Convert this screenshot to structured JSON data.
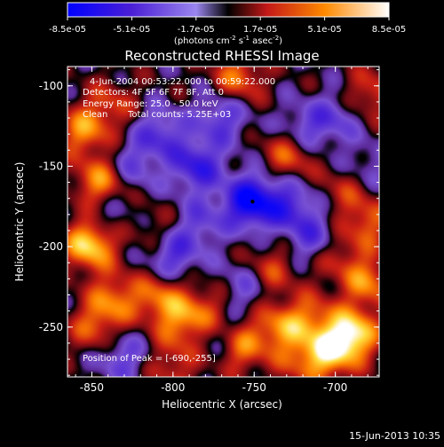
{
  "chart_data": {
    "type": "heatmap",
    "title": "Reconstructed RHESSI Image",
    "xlabel": "Heliocentric X (arcsec)",
    "ylabel": "Heliocentric Y (arcsec)",
    "xlim": [
      -865,
      -673
    ],
    "ylim": [
      -281,
      -88
    ],
    "x_ticks": [
      -850,
      -800,
      -750,
      -700
    ],
    "y_ticks": [
      -100,
      -150,
      -200,
      -250
    ],
    "colorbar": {
      "min": -8.5e-05,
      "max": 8.5e-05,
      "tick_labels": [
        "-8.5e-05",
        "-5.1e-05",
        "-1.7e-05",
        "1.7e-05",
        "5.1e-05",
        "8.5e-05"
      ],
      "label_prefix": "(photons cm",
      "label_exp1": "-2",
      "label_mid": " s",
      "label_exp2": "-1",
      "label_mid2": " asec",
      "label_exp3": "-2",
      "label_suffix": ")"
    },
    "annotations": {
      "time_range": "4-Jun-2004 00:53:22.000 to 00:59:22.000",
      "detectors": "Detectors: 4F 5F 6F 7F 8F, Att 0",
      "energy_range": "Energy Range: 25.0 - 50.0 keV",
      "clean_label": "Clean",
      "total_counts": "Total counts: 5.25E+03",
      "peak_position": "Position of Peak = [-690,-255]"
    },
    "blobs": [
      {
        "x": -851,
        "y": -198,
        "v": 8e-05
      },
      {
        "x": -845,
        "y": -160,
        "v": 5.5e-05
      },
      {
        "x": -855,
        "y": -128,
        "v": 5e-05
      },
      {
        "x": -848,
        "y": -250,
        "v": 4e-05
      },
      {
        "x": -836,
        "y": -232,
        "v": 4.5e-05
      },
      {
        "x": -838,
        "y": -112,
        "v": 3e-05
      },
      {
        "x": -808,
        "y": -232,
        "v": 4.5e-05
      },
      {
        "x": -795,
        "y": -248,
        "v": 4e-05
      },
      {
        "x": -780,
        "y": -240,
        "v": 3.5e-05
      },
      {
        "x": -758,
        "y": -262,
        "v": 5e-05
      },
      {
        "x": -735,
        "y": -250,
        "v": 4.5e-05
      },
      {
        "x": -715,
        "y": -245,
        "v": 4e-05
      },
      {
        "x": -690,
        "y": -255,
        "v": 8.5e-05
      },
      {
        "x": -705,
        "y": -268,
        "v": 5.5e-05
      },
      {
        "x": -680,
        "y": -222,
        "v": 5e-05
      },
      {
        "x": -700,
        "y": -205,
        "v": 3e-05
      },
      {
        "x": -680,
        "y": -185,
        "v": 4e-05
      },
      {
        "x": -740,
        "y": -215,
        "v": 3.5e-05
      },
      {
        "x": -728,
        "y": -142,
        "v": 4.5e-05
      },
      {
        "x": -695,
        "y": -165,
        "v": 2.5e-05
      },
      {
        "x": -678,
        "y": -105,
        "v": 3.5e-05
      },
      {
        "x": -760,
        "y": -95,
        "v": 4.5e-05
      },
      {
        "x": -800,
        "y": -275,
        "v": 3e-05
      },
      {
        "x": -810,
        "y": -190,
        "v": 2e-05
      },
      {
        "x": -722,
        "y": -270,
        "v": 3e-05
      },
      {
        "x": -752,
        "y": -172,
        "v": -8.5e-05
      },
      {
        "x": -785,
        "y": -150,
        "v": -5.5e-05
      },
      {
        "x": -800,
        "y": -205,
        "v": -4.5e-05
      },
      {
        "x": -770,
        "y": -120,
        "v": -4e-05
      },
      {
        "x": -808,
        "y": -130,
        "v": -4e-05
      },
      {
        "x": -728,
        "y": -175,
        "v": -4.5e-05
      },
      {
        "x": -720,
        "y": -128,
        "v": -3.5e-05
      },
      {
        "x": -713,
        "y": -195,
        "v": -4e-05
      },
      {
        "x": -755,
        "y": -225,
        "v": -3e-05
      },
      {
        "x": -842,
        "y": -182,
        "v": -2.5e-05
      },
      {
        "x": -832,
        "y": -268,
        "v": -3.5e-05
      },
      {
        "x": -770,
        "y": -255,
        "v": -2.5e-05
      },
      {
        "x": -700,
        "y": -120,
        "v": -3e-05
      },
      {
        "x": -825,
        "y": -150,
        "v": -3e-05
      },
      {
        "x": -783,
        "y": -185,
        "v": -3e-05
      },
      {
        "x": -680,
        "y": -150,
        "v": -2e-05
      }
    ]
  },
  "footer": {
    "date": "15-Jun-2013 10:35"
  }
}
